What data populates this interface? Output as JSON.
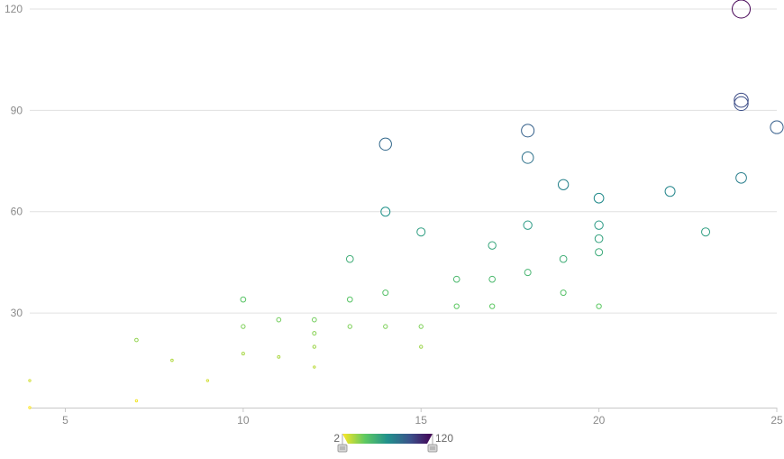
{
  "chart_data": {
    "type": "scatter",
    "title": "",
    "xlabel": "",
    "ylabel": "",
    "xlim": [
      4,
      25
    ],
    "ylim": [
      2,
      120
    ],
    "x_ticks": [
      5,
      10,
      15,
      20,
      25
    ],
    "y_ticks": [
      30,
      60,
      90,
      120
    ],
    "grid": "horizontal",
    "marker": "hollow circle",
    "size_encoding": "y value",
    "colormap": [
      "#fde725",
      "#5ec962",
      "#21918c",
      "#3b528b",
      "#440154"
    ],
    "visual_map": {
      "min": 2,
      "max": 120,
      "min_label": "2",
      "max_label": "120",
      "orientation": "horizontal",
      "placement": "bottom-center"
    },
    "points": [
      {
        "x": 4,
        "y": 2
      },
      {
        "x": 4,
        "y": 10
      },
      {
        "x": 7,
        "y": 4
      },
      {
        "x": 7,
        "y": 22
      },
      {
        "x": 8,
        "y": 16
      },
      {
        "x": 9,
        "y": 10
      },
      {
        "x": 10,
        "y": 18
      },
      {
        "x": 10,
        "y": 26
      },
      {
        "x": 10,
        "y": 34
      },
      {
        "x": 11,
        "y": 17
      },
      {
        "x": 11,
        "y": 28
      },
      {
        "x": 12,
        "y": 14
      },
      {
        "x": 12,
        "y": 20
      },
      {
        "x": 12,
        "y": 24
      },
      {
        "x": 12,
        "y": 28
      },
      {
        "x": 13,
        "y": 26
      },
      {
        "x": 13,
        "y": 34
      },
      {
        "x": 13,
        "y": 46
      },
      {
        "x": 14,
        "y": 26
      },
      {
        "x": 14,
        "y": 36
      },
      {
        "x": 14,
        "y": 60
      },
      {
        "x": 14,
        "y": 80
      },
      {
        "x": 15,
        "y": 20
      },
      {
        "x": 15,
        "y": 26
      },
      {
        "x": 15,
        "y": 54
      },
      {
        "x": 16,
        "y": 32
      },
      {
        "x": 16,
        "y": 40
      },
      {
        "x": 17,
        "y": 32
      },
      {
        "x": 17,
        "y": 40
      },
      {
        "x": 17,
        "y": 50
      },
      {
        "x": 18,
        "y": 42
      },
      {
        "x": 18,
        "y": 56
      },
      {
        "x": 18,
        "y": 76
      },
      {
        "x": 18,
        "y": 84
      },
      {
        "x": 19,
        "y": 36
      },
      {
        "x": 19,
        "y": 46
      },
      {
        "x": 19,
        "y": 68
      },
      {
        "x": 20,
        "y": 32
      },
      {
        "x": 20,
        "y": 48
      },
      {
        "x": 20,
        "y": 52
      },
      {
        "x": 20,
        "y": 56
      },
      {
        "x": 20,
        "y": 64
      },
      {
        "x": 22,
        "y": 66
      },
      {
        "x": 23,
        "y": 54
      },
      {
        "x": 24,
        "y": 70
      },
      {
        "x": 24,
        "y": 92
      },
      {
        "x": 24,
        "y": 93
      },
      {
        "x": 24,
        "y": 120
      },
      {
        "x": 25,
        "y": 85
      }
    ]
  }
}
